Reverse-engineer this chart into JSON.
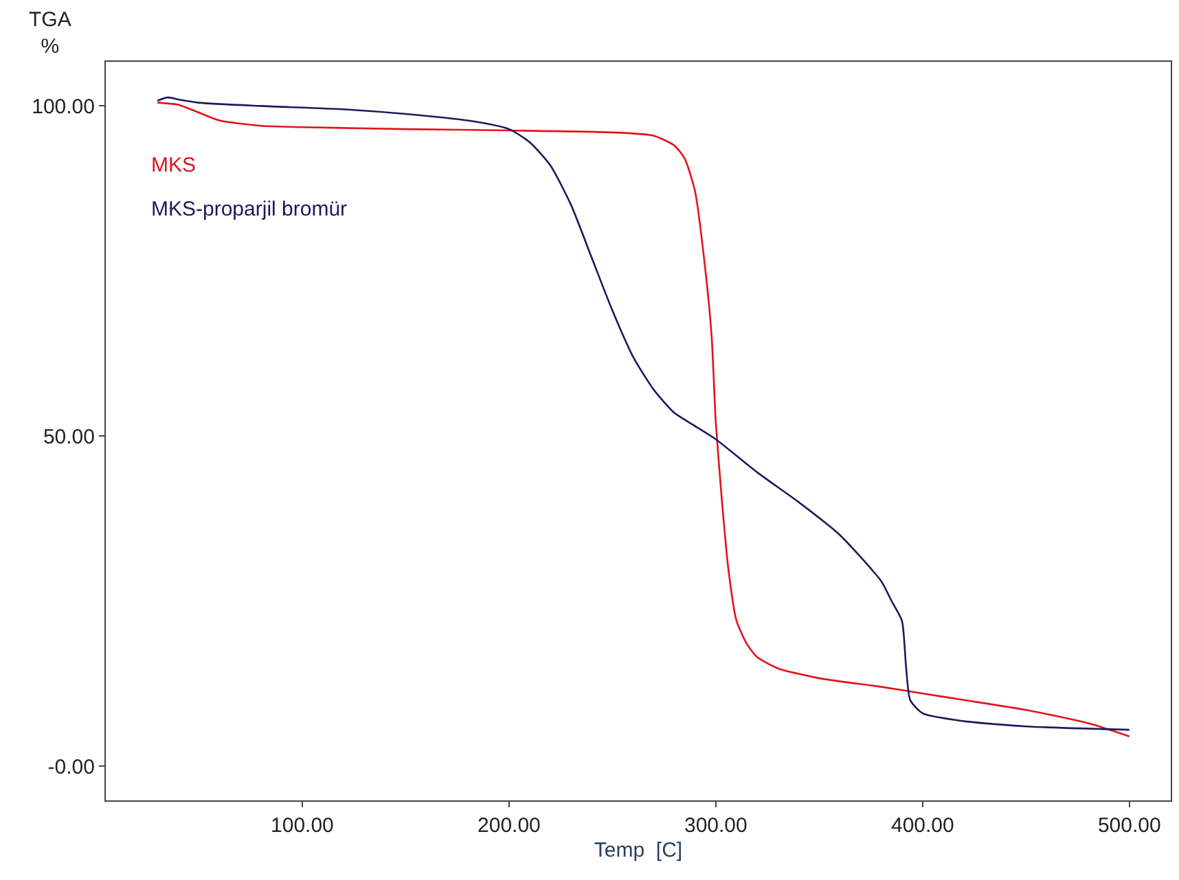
{
  "chart_data": {
    "type": "line",
    "xlabel": "Temp  [C]",
    "ylabel": "TGA\n%",
    "xlim": [
      5,
      520
    ],
    "ylim": [
      -5.2,
      106.7
    ],
    "xticks": [
      {
        "value": 100,
        "label": "100.00"
      },
      {
        "value": 200,
        "label": "200.00"
      },
      {
        "value": 300,
        "label": "300.00"
      },
      {
        "value": 400,
        "label": "400.00"
      },
      {
        "value": 500,
        "label": "500.00"
      }
    ],
    "yticks": [
      {
        "value": 0,
        "label": "-0.00"
      },
      {
        "value": 50,
        "label": "50.00"
      },
      {
        "value": 100,
        "label": "100.00"
      }
    ],
    "legend": "top left",
    "marker": "none",
    "line_style": "solid",
    "series": [
      {
        "name": "MKS",
        "color": "#e3121b",
        "x": [
          30,
          40,
          50,
          60,
          80,
          100,
          150,
          200,
          250,
          270,
          280,
          285,
          290,
          295,
          298,
          300,
          303,
          306,
          310,
          315,
          320,
          330,
          350,
          380,
          400,
          420,
          450,
          480,
          500
        ],
        "values": [
          100.5,
          100.2,
          99,
          97.8,
          97,
          96.8,
          96.5,
          96.3,
          96,
          95.5,
          94,
          92,
          87,
          75,
          65,
          52,
          40,
          30,
          22,
          18.5,
          16.5,
          14.8,
          13.3,
          12,
          11,
          10,
          8.5,
          6.5,
          4.5
        ]
      },
      {
        "name": "MKS-proparjil bromür",
        "color": "#1c1a5c",
        "x": [
          30,
          35,
          40,
          50,
          80,
          120,
          150,
          180,
          200,
          210,
          220,
          230,
          240,
          250,
          260,
          270,
          280,
          290,
          300,
          320,
          340,
          360,
          380,
          385,
          390,
          392,
          394,
          400,
          420,
          450,
          500
        ],
        "values": [
          100.8,
          101.3,
          101,
          100.5,
          100,
          99.5,
          98.8,
          97.8,
          96.5,
          94.5,
          91,
          85,
          77,
          69,
          62,
          57,
          53.5,
          51.5,
          49.5,
          44.5,
          40,
          35,
          28,
          25,
          22,
          15,
          10,
          8,
          6.8,
          6,
          5.5
        ]
      }
    ]
  }
}
